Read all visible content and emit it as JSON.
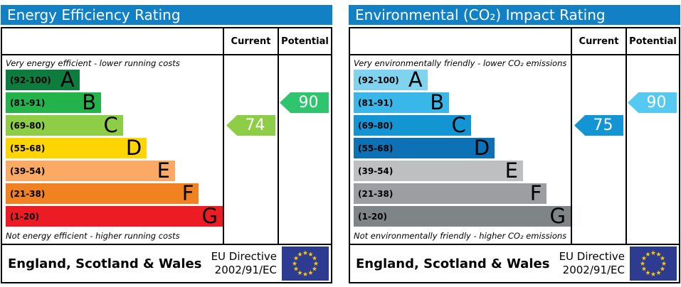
{
  "colors": {
    "title_bar": "#1180c5",
    "flag_blue": "#2d3c90",
    "flag_star": "#ffcc00"
  },
  "panels": [
    {
      "title": "Energy Efficiency Rating",
      "columns": {
        "current": "Current",
        "potential": "Potential"
      },
      "top_caption": "Very energy efficient - lower running costs",
      "bottom_caption": "Not energy efficient - higher running costs",
      "bands": [
        {
          "letter": "A",
          "range": "(92-100)",
          "color": "#0e7c3f",
          "width": "34%"
        },
        {
          "letter": "B",
          "range": "(81-91)",
          "color": "#24b24b",
          "width": "44%"
        },
        {
          "letter": "C",
          "range": "(69-80)",
          "color": "#8dce46",
          "width": "54%"
        },
        {
          "letter": "D",
          "range": "(55-68)",
          "color": "#ffd500",
          "width": "65%"
        },
        {
          "letter": "E",
          "range": "(39-54)",
          "color": "#fbaa65",
          "width": "78%"
        },
        {
          "letter": "F",
          "range": "(21-38)",
          "color": "#f08222",
          "width": "89%"
        },
        {
          "letter": "G",
          "range": "(1-20)",
          "color": "#ed1c24",
          "width": "100%"
        }
      ],
      "current": {
        "value": 74,
        "band": "C",
        "row": 2,
        "color": "#8dce46"
      },
      "potential": {
        "value": 90,
        "band": "B",
        "row": 1,
        "color": "#2fc56e"
      },
      "footer": {
        "region": "England, Scotland & Wales",
        "directive_line1": "EU Directive",
        "directive_line2": "2002/91/EC"
      }
    },
    {
      "title": "Environmental (CO₂) Impact Rating",
      "columns": {
        "current": "Current",
        "potential": "Potential"
      },
      "top_caption": "Very environmentally friendly - lower CO₂ emissions",
      "bottom_caption": "Not environmentally friendly - higher CO₂ emissions",
      "bands": [
        {
          "letter": "A",
          "range": "(92-100)",
          "color": "#7fd3ef",
          "width": "34%"
        },
        {
          "letter": "B",
          "range": "(81-91)",
          "color": "#39b7e8",
          "width": "44%"
        },
        {
          "letter": "C",
          "range": "(69-80)",
          "color": "#1295d2",
          "width": "54%"
        },
        {
          "letter": "D",
          "range": "(55-68)",
          "color": "#0c72b5",
          "width": "65%"
        },
        {
          "letter": "E",
          "range": "(39-54)",
          "color": "#bdbfc1",
          "width": "78%"
        },
        {
          "letter": "F",
          "range": "(21-38)",
          "color": "#9c9ea1",
          "width": "89%"
        },
        {
          "letter": "G",
          "range": "(1-20)",
          "color": "#7f8486",
          "width": "100%"
        }
      ],
      "current": {
        "value": 75,
        "band": "C",
        "row": 2,
        "color": "#1295d2"
      },
      "potential": {
        "value": 90,
        "band": "B",
        "row": 1,
        "color": "#55c9f2"
      },
      "footer": {
        "region": "England, Scotland & Wales",
        "directive_line1": "EU Directive",
        "directive_line2": "2002/91/EC"
      }
    }
  ],
  "chart_data": [
    {
      "type": "bar",
      "title": "Energy Efficiency Rating",
      "categories": [
        "A (92-100)",
        "B (81-91)",
        "C (69-80)",
        "D (55-68)",
        "E (39-54)",
        "F (21-38)",
        "G (1-20)"
      ],
      "series": [
        {
          "name": "Current",
          "values": [
            74
          ],
          "band": "C"
        },
        {
          "name": "Potential",
          "values": [
            90
          ],
          "band": "B"
        }
      ],
      "xlabel": "",
      "ylabel": "",
      "ylim": [
        1,
        100
      ],
      "annotations": [
        "Very energy efficient - lower running costs",
        "Not energy efficient - higher running costs",
        "England, Scotland & Wales",
        "EU Directive 2002/91/EC"
      ]
    },
    {
      "type": "bar",
      "title": "Environmental (CO₂) Impact Rating",
      "categories": [
        "A (92-100)",
        "B (81-91)",
        "C (69-80)",
        "D (55-68)",
        "E (39-54)",
        "F (21-38)",
        "G (1-20)"
      ],
      "series": [
        {
          "name": "Current",
          "values": [
            75
          ],
          "band": "C"
        },
        {
          "name": "Potential",
          "values": [
            90
          ],
          "band": "B"
        }
      ],
      "xlabel": "",
      "ylabel": "",
      "ylim": [
        1,
        100
      ],
      "annotations": [
        "Very environmentally friendly - lower CO₂ emissions",
        "Not environmentally friendly - higher CO₂ emissions",
        "England, Scotland & Wales",
        "EU Directive 2002/91/EC"
      ]
    }
  ]
}
